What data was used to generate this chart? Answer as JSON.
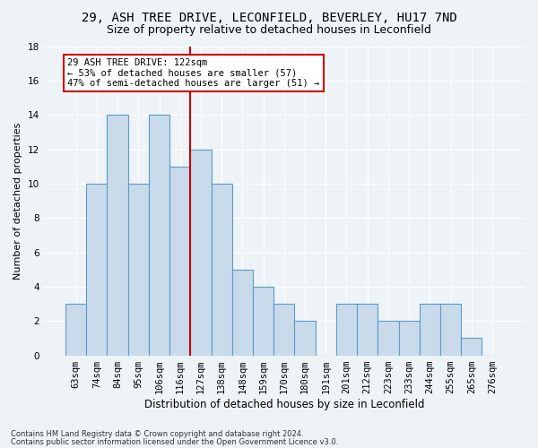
{
  "title": "29, ASH TREE DRIVE, LECONFIELD, BEVERLEY, HU17 7ND",
  "subtitle": "Size of property relative to detached houses in Leconfield",
  "xlabel": "Distribution of detached houses by size in Leconfield",
  "ylabel": "Number of detached properties",
  "categories": [
    "63sqm",
    "74sqm",
    "84sqm",
    "95sqm",
    "106sqm",
    "116sqm",
    "127sqm",
    "138sqm",
    "148sqm",
    "159sqm",
    "170sqm",
    "180sqm",
    "191sqm",
    "201sqm",
    "212sqm",
    "223sqm",
    "233sqm",
    "244sqm",
    "255sqm",
    "265sqm",
    "276sqm"
  ],
  "values": [
    3,
    10,
    14,
    10,
    14,
    11,
    12,
    10,
    5,
    4,
    3,
    2,
    0,
    3,
    3,
    2,
    2,
    3,
    3,
    1,
    0
  ],
  "bar_color": "#c9daea",
  "bar_edge_color": "#5a9dc8",
  "property_line_x": 5.5,
  "annotation_line1": "29 ASH TREE DRIVE: 122sqm",
  "annotation_line2": "← 53% of detached houses are smaller (57)",
  "annotation_line3": "47% of semi-detached houses are larger (51) →",
  "annotation_box_color": "#ffffff",
  "annotation_border_color": "#cc0000",
  "vline_color": "#cc0000",
  "title_fontsize": 10,
  "subtitle_fontsize": 9,
  "xlabel_fontsize": 8.5,
  "ylabel_fontsize": 8,
  "tick_fontsize": 7.5,
  "annotation_fontsize": 7.5,
  "footnote1": "Contains HM Land Registry data © Crown copyright and database right 2024.",
  "footnote2": "Contains public sector information licensed under the Open Government Licence v3.0.",
  "ylim": [
    0,
    18
  ],
  "background_color": "#eef3f8",
  "grid_color": "#ffffff"
}
